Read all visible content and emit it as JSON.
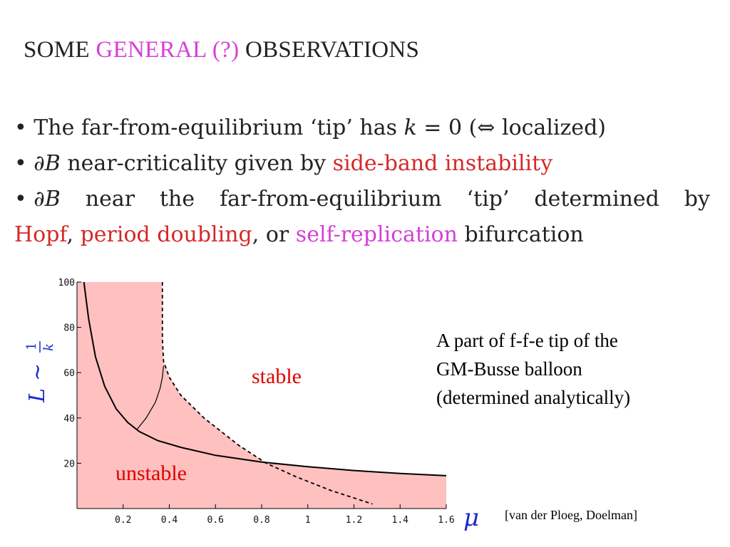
{
  "title": {
    "part1": "SOME",
    "part2": "GENERAL (?)",
    "part3": "OBSERVATIONS"
  },
  "bullets": {
    "b1": {
      "bullet": "•",
      "text1": "The far-from-equilibrium ‘tip’ has",
      "k": "k",
      "eq": "= 0 (⇔ localized)"
    },
    "b2": {
      "bullet": "•",
      "sym": "∂B",
      "text1": "near-criticality given by",
      "red": "side-band instability"
    },
    "b3": {
      "bullet": "•",
      "sym": "∂B",
      "words": [
        "near",
        "the",
        "far-from-equilibrium",
        "‘tip’",
        "determined",
        "by"
      ]
    },
    "b4": {
      "hopf": "Hopf",
      "comma1": ",",
      "pd": "period doubling",
      "or": ", or",
      "sr": "self-replication",
      "bif": "bifurcation"
    }
  },
  "chart_data": {
    "type": "line",
    "xlim": [
      0,
      1.6
    ],
    "ylim": [
      0,
      100
    ],
    "xticks": [
      0.2,
      0.4,
      0.6,
      0.8,
      1,
      1.2,
      1.4,
      1.6
    ],
    "xtick_labels": [
      "0.2",
      "0.4",
      "0.6",
      "0.8",
      "1",
      "1.2",
      "1.4",
      "1.6"
    ],
    "yticks": [
      20,
      40,
      60,
      80,
      100
    ],
    "ytick_labels": [
      "20",
      "40",
      "60",
      "80",
      "100"
    ],
    "xlabel": "μ",
    "ylabel": "L ~ 1/k",
    "ylabel_parts": {
      "L": "L",
      "sim": "∼",
      "num": "1",
      "den": "k"
    },
    "fill_color": "#ffc0c0",
    "series": [
      {
        "style": "solid",
        "x": [
          0.03,
          0.05,
          0.08,
          0.12,
          0.17,
          0.22,
          0.27,
          0.35,
          0.45,
          0.6,
          0.8,
          1.0,
          1.2,
          1.4,
          1.6
        ],
        "y": [
          100,
          84,
          67,
          54,
          44,
          38,
          34,
          30,
          27,
          23.5,
          20.5,
          18.5,
          16.8,
          15.5,
          14.5
        ]
      },
      {
        "style": "solid-thin",
        "x": [
          0.26,
          0.3,
          0.34,
          0.36,
          0.37,
          0.375
        ],
        "y": [
          35,
          40,
          47,
          53,
          58,
          63
        ]
      },
      {
        "style": "dashed",
        "x": [
          0.37,
          0.37,
          0.375,
          0.4,
          0.45,
          0.55,
          0.7,
          0.82,
          0.95,
          1.1,
          1.28
        ],
        "y": [
          100,
          75,
          65,
          58,
          50,
          40,
          28,
          20,
          14,
          8,
          2
        ]
      }
    ],
    "annotations": {
      "stable": "stable",
      "unstable": "unstable"
    }
  },
  "caption": {
    "line1": "A part of f-f-e tip of the",
    "line2": "GM-Busse balloon",
    "line3": "(determined analytically)"
  },
  "citation": "[van der Ploeg, Doelman]"
}
